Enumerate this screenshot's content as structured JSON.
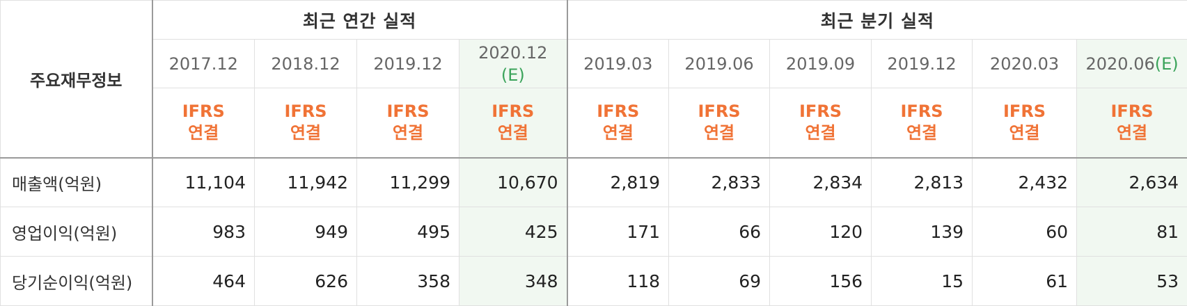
{
  "header": {
    "label_column": "주요재무정보",
    "annual_title": "최근 연간 실적",
    "quarter_title": "최근 분기 실적"
  },
  "periods": {
    "annual": [
      {
        "period": "2017.12",
        "est_mark": "",
        "std": "IFRS",
        "basis": "연결"
      },
      {
        "period": "2018.12",
        "est_mark": "",
        "std": "IFRS",
        "basis": "연결"
      },
      {
        "period": "2019.12",
        "est_mark": "",
        "std": "IFRS",
        "basis": "연결"
      },
      {
        "period": "2020.12",
        "est_mark": "(E)",
        "std": "IFRS",
        "basis": "연결"
      }
    ],
    "quarter": [
      {
        "period": "2019.03",
        "est_mark": "",
        "std": "IFRS",
        "basis": "연결"
      },
      {
        "period": "2019.06",
        "est_mark": "",
        "std": "IFRS",
        "basis": "연결"
      },
      {
        "period": "2019.09",
        "est_mark": "",
        "std": "IFRS",
        "basis": "연결"
      },
      {
        "period": "2019.12",
        "est_mark": "",
        "std": "IFRS",
        "basis": "연결"
      },
      {
        "period": "2020.03",
        "est_mark": "",
        "std": "IFRS",
        "basis": "연결"
      },
      {
        "period": "2020.06",
        "est_mark": "(E)",
        "std": "IFRS",
        "basis": "연결"
      }
    ]
  },
  "rows": [
    {
      "label": "매출액(억원)",
      "annual": [
        "11,104",
        "11,942",
        "11,299",
        "10,670"
      ],
      "quarter": [
        "2,819",
        "2,833",
        "2,834",
        "2,813",
        "2,432",
        "2,634"
      ]
    },
    {
      "label": "영업이익(억원)",
      "annual": [
        "983",
        "949",
        "495",
        "425"
      ],
      "quarter": [
        "171",
        "66",
        "120",
        "139",
        "60",
        "81"
      ]
    },
    {
      "label": "당기순이익(억원)",
      "annual": [
        "464",
        "626",
        "358",
        "348"
      ],
      "quarter": [
        "118",
        "69",
        "156",
        "15",
        "61",
        "53"
      ]
    }
  ],
  "colors": {
    "ifrs_text": "#f07336",
    "estimate_bg": "#f1f8f1",
    "estimate_mark": "#3aa35a",
    "grid": "#e0e0e0",
    "divider": "#9a9a9a"
  }
}
